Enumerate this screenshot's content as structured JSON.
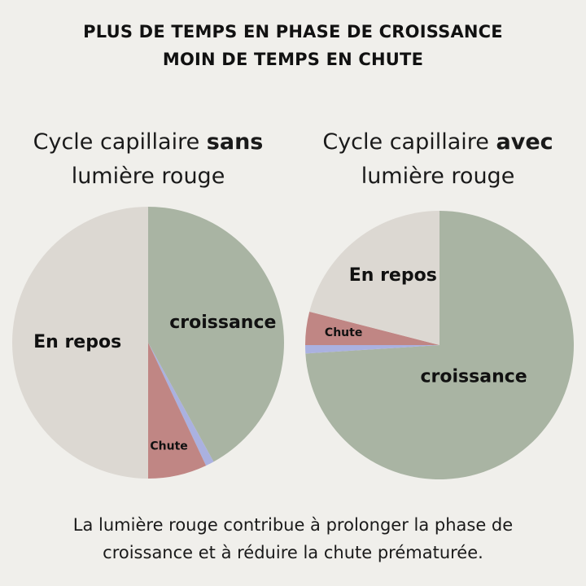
{
  "headline": {
    "line1": "PLUS DE TEMPS EN PHASE DE CROISSANCE",
    "line2": "MOIN DE TEMPS EN CHUTE"
  },
  "colors": {
    "background": "#f0efeb",
    "croissance": "#a9b4a3",
    "repos": "#dcd8d2",
    "chute": "#c08684",
    "transition": "#aab1e0"
  },
  "chart_data": [
    {
      "type": "pie",
      "title_prefix": "Cycle capillaire ",
      "title_bold": "sans",
      "title_line2": "lumière rouge",
      "labels": [
        "croissance",
        "transition",
        "Chute",
        "En repos"
      ],
      "display_labels": [
        "croissance",
        "",
        "Chute",
        "En repos"
      ],
      "values": [
        42,
        1,
        7,
        50
      ]
    },
    {
      "type": "pie",
      "title_prefix": "Cycle capillaire ",
      "title_bold": "avec",
      "title_line2": "lumière rouge",
      "labels": [
        "croissance",
        "transition",
        "Chute",
        "En repos"
      ],
      "display_labels": [
        "croissance",
        "",
        "Chute",
        "En repos"
      ],
      "values": [
        74,
        1,
        4,
        21
      ]
    }
  ],
  "caption": {
    "line1": "La lumière rouge contribue à prolonger la phase de",
    "line2": "croissance et à réduire la chute prématurée."
  }
}
